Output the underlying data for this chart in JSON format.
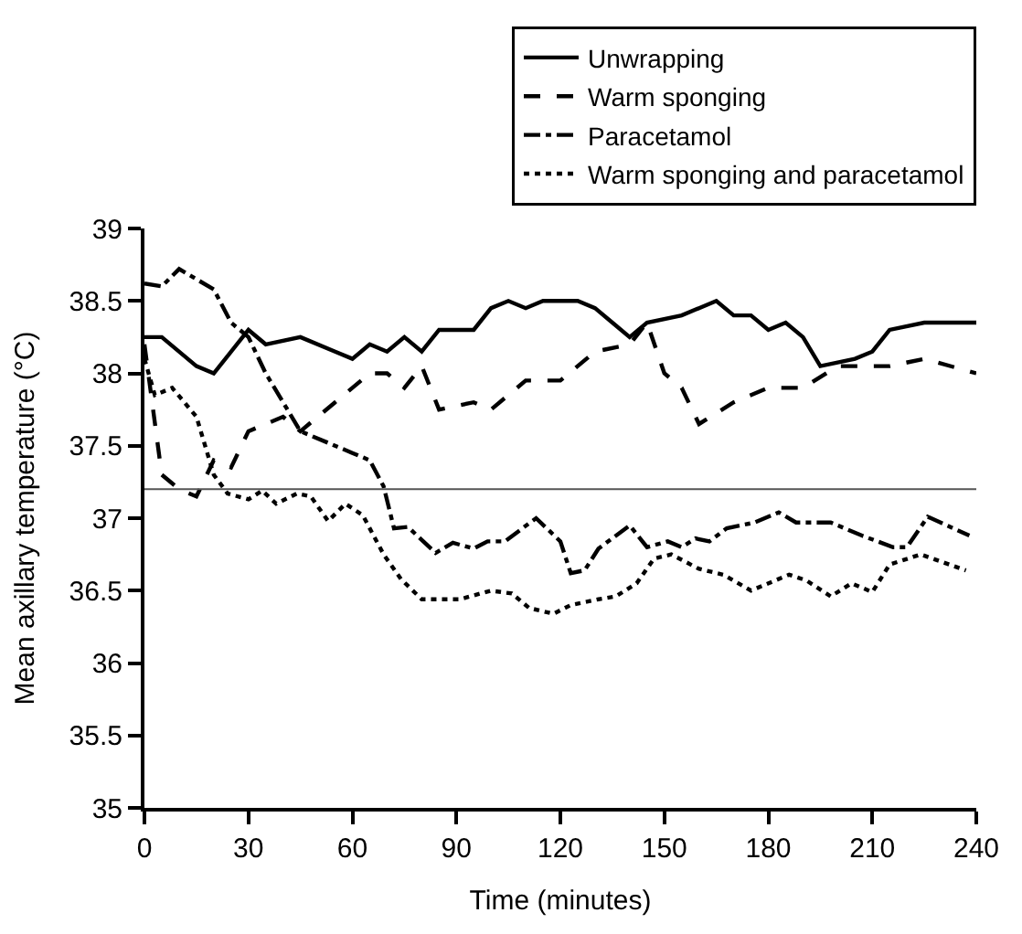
{
  "chart_data": {
    "type": "line",
    "xlabel": "Time (minutes)",
    "ylabel": "Mean axillary temperature (°C)",
    "xlim": [
      0,
      240
    ],
    "xticks": [
      0,
      30,
      60,
      90,
      120,
      150,
      180,
      210,
      240
    ],
    "ylim": [
      35,
      39
    ],
    "yticks": [
      35,
      35.5,
      36,
      36.5,
      37,
      37.5,
      38,
      38.5,
      39
    ],
    "legend": "top right",
    "marker": "none",
    "ref_lines": [
      {
        "axis": "y",
        "value": 37.2,
        "label": null,
        "color": "#555555"
      }
    ],
    "series": [
      {
        "name": "Unwrapping",
        "color": "#000000",
        "line_style": "solid",
        "x": [
          0,
          5,
          15,
          20,
          30,
          35,
          45,
          55,
          60,
          65,
          70,
          75,
          80,
          85,
          95,
          100,
          105,
          110,
          115,
          125,
          130,
          135,
          140,
          145,
          155,
          165,
          170,
          175,
          180,
          185,
          190,
          195,
          205,
          210,
          215,
          225,
          240
        ],
        "values": [
          38.25,
          38.25,
          38.05,
          38.0,
          38.3,
          38.2,
          38.25,
          38.15,
          38.1,
          38.2,
          38.15,
          38.25,
          38.15,
          38.3,
          38.3,
          38.45,
          38.5,
          38.45,
          38.5,
          38.5,
          38.45,
          38.35,
          38.25,
          38.35,
          38.4,
          38.5,
          38.4,
          38.4,
          38.3,
          38.35,
          38.25,
          38.05,
          38.1,
          38.15,
          38.3,
          38.35,
          38.35
        ]
      },
      {
        "name": "Warm sponging",
        "color": "#000000",
        "line_style": "dashed",
        "x": [
          0,
          5,
          10,
          15,
          20,
          25,
          30,
          40,
          45,
          55,
          65,
          70,
          75,
          80,
          85,
          95,
          100,
          105,
          110,
          120,
          130,
          140,
          145,
          150,
          155,
          160,
          170,
          180,
          190,
          200,
          215,
          225,
          240
        ],
        "values": [
          38.2,
          37.3,
          37.2,
          37.15,
          37.4,
          37.35,
          37.6,
          37.7,
          37.6,
          37.8,
          38.0,
          38.0,
          37.9,
          38.05,
          37.75,
          37.8,
          37.75,
          37.85,
          37.95,
          37.95,
          38.15,
          38.2,
          38.35,
          38.0,
          37.9,
          37.65,
          37.8,
          37.9,
          37.9,
          38.05,
          38.05,
          38.1,
          38.0
        ]
      },
      {
        "name": "Paracetamol",
        "color": "#000000",
        "line_style": "dashdot",
        "x": [
          0,
          5,
          10,
          20,
          25,
          30,
          35,
          40,
          45,
          55,
          60,
          65,
          69,
          72,
          76,
          84,
          89,
          95,
          99,
          104,
          113,
          120,
          123,
          127,
          131,
          140,
          145,
          151,
          155,
          159,
          163,
          168,
          176,
          183,
          188,
          198,
          207,
          216,
          220,
          226,
          238
        ],
        "values": [
          38.62,
          38.6,
          38.72,
          38.58,
          38.35,
          38.25,
          38.0,
          37.8,
          37.6,
          37.5,
          37.45,
          37.4,
          37.22,
          36.93,
          36.94,
          36.76,
          36.83,
          36.79,
          36.84,
          36.84,
          37.0,
          36.84,
          36.62,
          36.64,
          36.79,
          36.95,
          36.8,
          36.84,
          36.8,
          36.86,
          36.84,
          36.93,
          36.97,
          37.04,
          36.97,
          36.97,
          36.88,
          36.8,
          36.8,
          37.01,
          36.88
        ]
      },
      {
        "name": "Warm sponging and paracetamol",
        "color": "#000000",
        "line_style": "dotted",
        "x": [
          0,
          3,
          8,
          15,
          20,
          24,
          30,
          34,
          38,
          44,
          48,
          53,
          58,
          63,
          69,
          74,
          80,
          84,
          91,
          100,
          106,
          111,
          118,
          123,
          131,
          136,
          142,
          147,
          152,
          160,
          167,
          175,
          186,
          191,
          198,
          204,
          210,
          215,
          224,
          237
        ],
        "values": [
          38.1,
          37.85,
          37.9,
          37.7,
          37.3,
          37.17,
          37.13,
          37.19,
          37.1,
          37.17,
          37.15,
          36.98,
          37.1,
          37.02,
          36.75,
          36.58,
          36.44,
          36.44,
          36.44,
          36.5,
          36.48,
          36.38,
          36.34,
          36.4,
          36.44,
          36.46,
          36.55,
          36.72,
          36.75,
          36.65,
          36.61,
          36.5,
          36.61,
          36.57,
          36.46,
          36.55,
          36.49,
          36.68,
          36.75,
          36.64
        ]
      }
    ]
  }
}
